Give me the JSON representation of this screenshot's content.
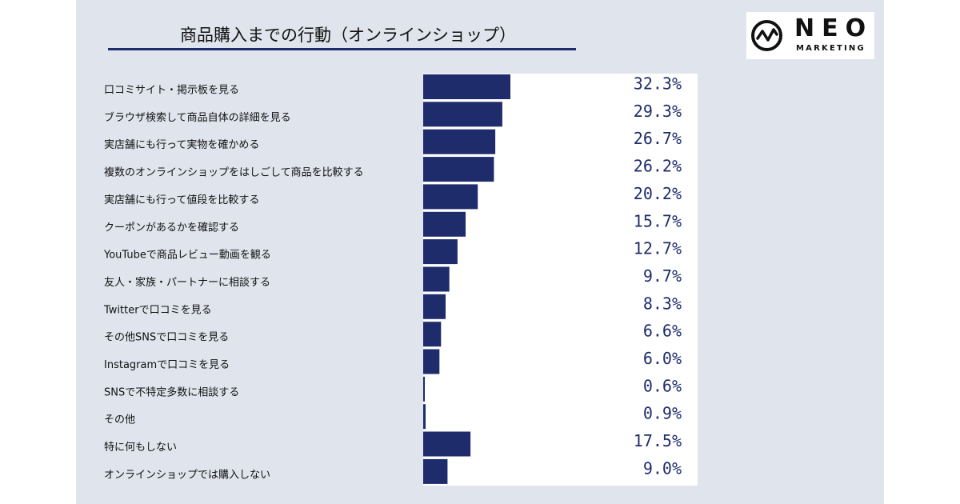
{
  "header": {
    "title": "商品購入までの行動（オンラインショップ）"
  },
  "logo": {
    "word": "NEO",
    "sub": "MARKETING"
  },
  "colors": {
    "bar": "#1f2c6b",
    "value_text": "#1f2c6b",
    "panel_bg": "#dfe4ed",
    "plot_bg": "#ffffff"
  },
  "chart_data": {
    "type": "bar",
    "orientation": "horizontal",
    "title": "商品購入までの行動（オンラインショップ）",
    "unit": "%",
    "xlim": [
      0,
      100
    ],
    "grid": false,
    "legend": "none",
    "categories": [
      "口コミサイト・掲示板を見る",
      "ブラウザ検索して商品自体の詳細を見る",
      "実店舗にも行って実物を確かめる",
      "複数のオンラインショップをはしごして商品を比較する",
      "実店舗にも行って値段を比較する",
      "クーポンがあるかを確認する",
      "YouTubeで商品レビュー動画を観る",
      "友人・家族・パートナーに相談する",
      "Twitterで口コミを見る",
      "その他SNSで口コミを見る",
      "Instagramで口コミを見る",
      "SNSで不特定多数に相談する",
      "その他",
      "特に何もしない",
      "オンラインショップでは購入しない"
    ],
    "values": [
      32.3,
      29.3,
      26.7,
      26.2,
      20.2,
      15.7,
      12.7,
      9.7,
      8.3,
      6.6,
      6.0,
      0.6,
      0.9,
      17.5,
      9.0
    ],
    "value_labels": [
      "32.3%",
      "29.3%",
      "26.7%",
      "26.2%",
      "20.2%",
      "15.7%",
      "12.7%",
      "9.7%",
      "8.3%",
      "6.6%",
      "6.0%",
      "0.6%",
      "0.9%",
      "17.5%",
      "9.0%"
    ]
  }
}
